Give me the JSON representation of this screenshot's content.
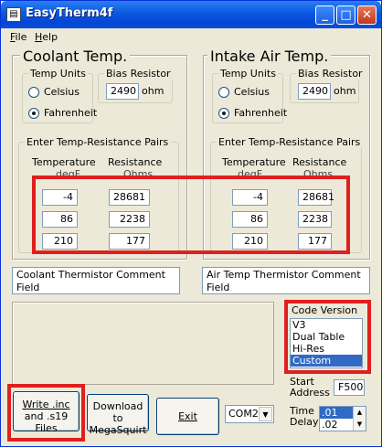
{
  "window": {
    "title": "EasyTherm4f",
    "app_icon": "thermometer-icon"
  },
  "titlebar_buttons": {
    "minimize": "_",
    "maximize": "□",
    "close": "✕"
  },
  "menu": [
    {
      "label": "File",
      "accel": "F",
      "rest": "ile"
    },
    {
      "label": "Help",
      "accel": "H",
      "rest": "elp"
    }
  ],
  "coolant": {
    "title": "Coolant Temp.",
    "temp_units_label": "Temp Units",
    "celsius_label": "Celsius",
    "fahrenheit_label": "Fahrenheit",
    "selected_unit": "Fahrenheit",
    "bias_label": "Bias Resistor",
    "bias_value": "2490",
    "bias_unit": "ohm",
    "pairs_label": "Enter Temp-Resistance Pairs",
    "col_temp_header": "Temperature",
    "col_temp_sub": "degF",
    "col_res_header": "Resistance",
    "col_res_sub": "Ohms",
    "rows": [
      {
        "temp": "-4",
        "res": "28681"
      },
      {
        "temp": "86",
        "res": "2238"
      },
      {
        "temp": "210",
        "res": "177"
      }
    ],
    "comment": "Coolant Thermistor Comment Field"
  },
  "intake": {
    "title": "Intake Air Temp.",
    "temp_units_label": "Temp Units",
    "celsius_label": "Celsius",
    "fahrenheit_label": "Fahrenheit",
    "selected_unit": "Fahrenheit",
    "bias_label": "Bias Resistor",
    "bias_value": "2490",
    "bias_unit": "ohm",
    "pairs_label": "Enter Temp-Resistance Pairs",
    "col_temp_header": "Temperature",
    "col_temp_sub": "degF",
    "col_res_header": "Resistance",
    "col_res_sub": "Ohms",
    "rows": [
      {
        "temp": "-4",
        "res": "28681"
      },
      {
        "temp": "86",
        "res": "2238"
      },
      {
        "temp": "210",
        "res": "177"
      }
    ],
    "comment": "Air Temp Thermistor Comment Field"
  },
  "code_version": {
    "label": "Code Version",
    "options": [
      "V3",
      "Dual Table",
      "Hi-Res",
      "Custom"
    ],
    "selected": "Custom"
  },
  "start_address": {
    "label_line1": "Start",
    "label_line2": "Address",
    "value": "F500"
  },
  "time_delay": {
    "label_line1": "Time",
    "label_line2": "Delay",
    "options": [
      ".01",
      ".02"
    ],
    "selected": ".01"
  },
  "buttons": {
    "write_line1": "Write .inc",
    "write_line2": "and .s19 Files",
    "download_line1": "Download to",
    "download_line2": "MegaSquirt",
    "exit": "Exit"
  },
  "com_port": {
    "value": "COM2"
  },
  "colors": {
    "highlight_red": "#e01f1f",
    "title_blue": "#0a58e0",
    "selection_blue": "#316ac5"
  }
}
